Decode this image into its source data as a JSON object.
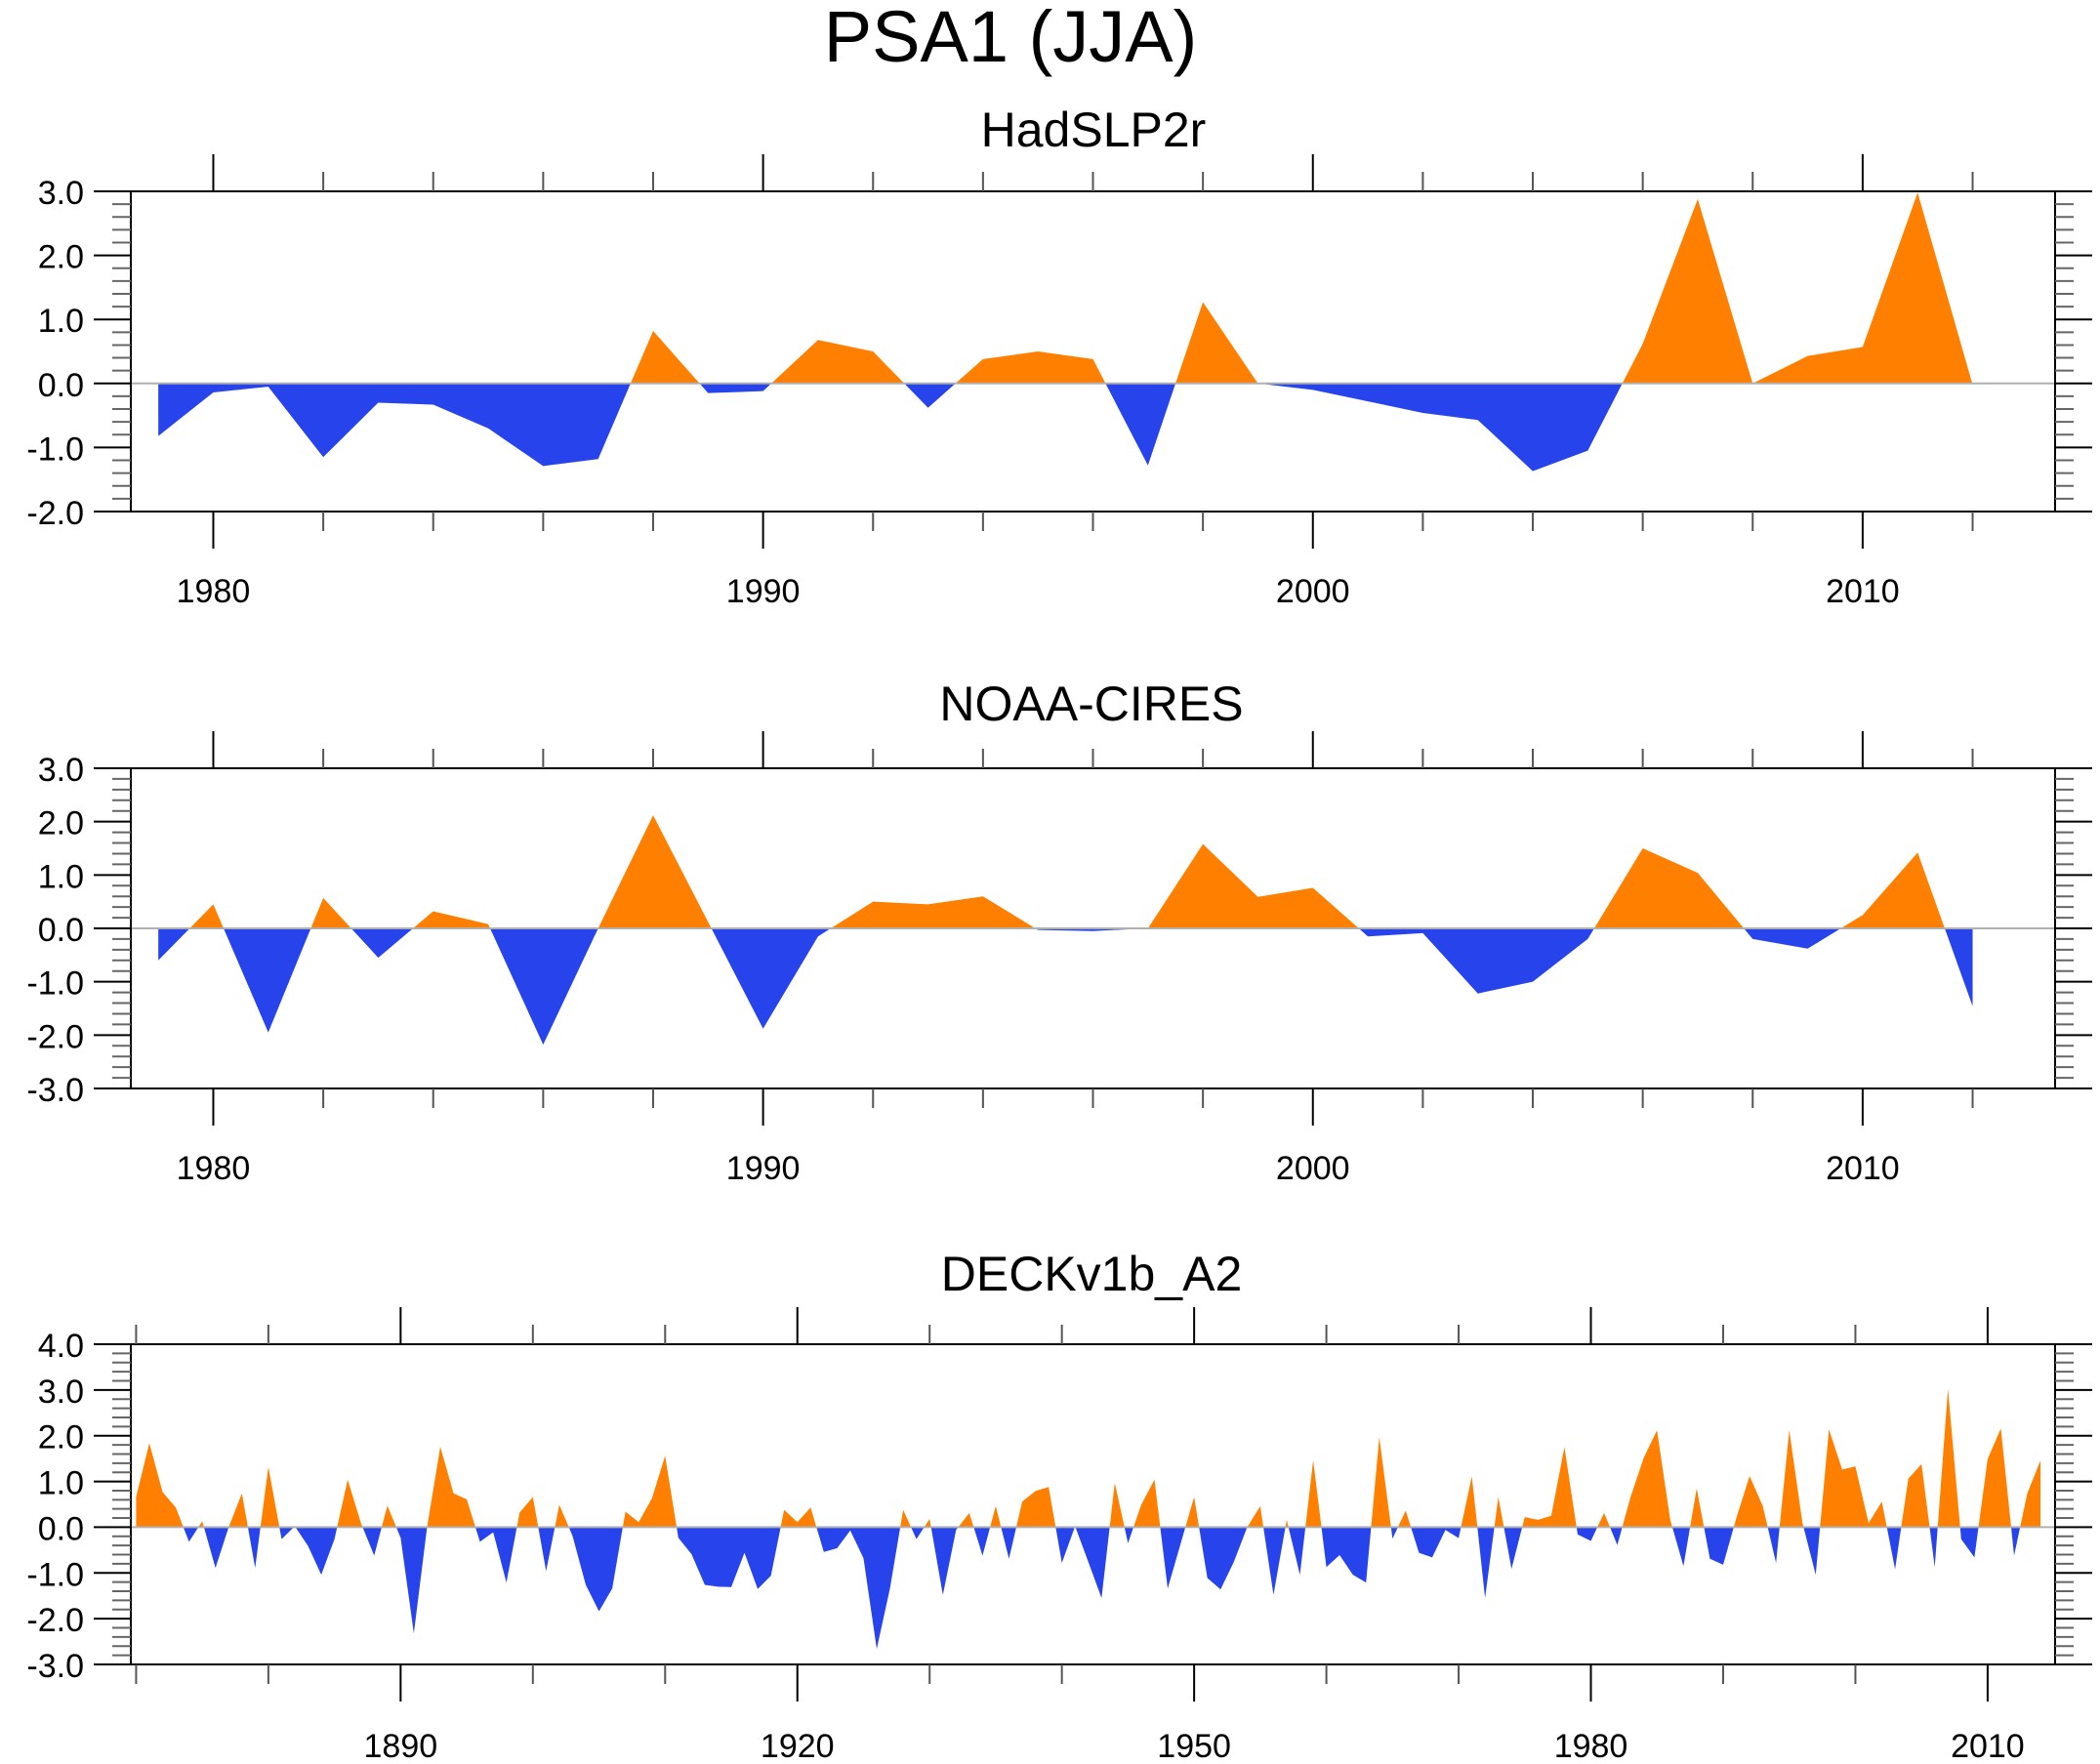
{
  "chart_data": {
    "type": "area",
    "title": "PSA1 (JJA)",
    "colors": {
      "positive": "#FF8000",
      "negative": "#2743EB",
      "zero_line": "#b0b0b0",
      "frame": "#000000"
    },
    "panels": [
      {
        "title": "HadSLP2r",
        "xlabel": "",
        "ylabel": "",
        "xlim": [
          1978.5,
          2013.5
        ],
        "ylim": [
          -2.0,
          3.0
        ],
        "x_major_ticks": [
          1980,
          1990,
          2000,
          2010
        ],
        "x_tick_labels": [
          "1980",
          "1990",
          "2000",
          "2010"
        ],
        "x_minor_step": 2,
        "y_ticks": [
          3.0,
          2.0,
          1.0,
          0.0,
          -1.0,
          -2.0
        ],
        "y_tick_labels": [
          "3.0",
          "2.0",
          "1.0",
          "0.0",
          "-1.0",
          "-2.0"
        ],
        "y_minor_step": 0.2,
        "grid": false,
        "x": [
          1979,
          1980,
          1981,
          1982,
          1983,
          1984,
          1985,
          1986,
          1987,
          1988,
          1989,
          1990,
          1991,
          1992,
          1993,
          1994,
          1995,
          1996,
          1997,
          1998,
          1999,
          2000,
          2001,
          2002,
          2003,
          2004,
          2005,
          2006,
          2007,
          2008,
          2009,
          2010,
          2011,
          2012
        ],
        "values": [
          -0.82,
          -0.14,
          -0.05,
          -1.15,
          -0.3,
          -0.33,
          -0.7,
          -1.29,
          -1.18,
          0.82,
          -0.15,
          -0.12,
          0.68,
          0.5,
          -0.38,
          0.38,
          0.5,
          0.38,
          -1.28,
          1.27,
          0.0,
          -0.1,
          -0.28,
          -0.46,
          -0.57,
          -1.37,
          -1.05,
          0.62,
          2.88,
          0.0,
          0.43,
          0.57,
          2.98,
          -0.02
        ]
      },
      {
        "title": "NOAA-CIRES",
        "xlabel": "",
        "ylabel": "",
        "xlim": [
          1978.5,
          2013.5
        ],
        "ylim": [
          -3.0,
          3.0
        ],
        "x_major_ticks": [
          1980,
          1990,
          2000,
          2010
        ],
        "x_tick_labels": [
          "1980",
          "1990",
          "2000",
          "2010"
        ],
        "x_minor_step": 2,
        "y_ticks": [
          3.0,
          2.0,
          1.0,
          0.0,
          -1.0,
          -2.0,
          -3.0
        ],
        "y_tick_labels": [
          "3.0",
          "2.0",
          "1.0",
          "0.0",
          "-1.0",
          "-2.0",
          "-3.0"
        ],
        "y_minor_step": 0.2,
        "grid": false,
        "x": [
          1979,
          1980,
          1981,
          1982,
          1983,
          1984,
          1985,
          1986,
          1987,
          1988,
          1989,
          1990,
          1991,
          1992,
          1993,
          1994,
          1995,
          1996,
          1997,
          1998,
          1999,
          2000,
          2001,
          2002,
          2003,
          2004,
          2005,
          2006,
          2007,
          2008,
          2009,
          2010,
          2011,
          2012
        ],
        "values": [
          -0.6,
          0.45,
          -1.95,
          0.57,
          -0.55,
          0.32,
          0.08,
          -2.18,
          0.0,
          2.12,
          0.12,
          -1.88,
          -0.15,
          0.5,
          0.45,
          0.6,
          -0.03,
          -0.05,
          0.0,
          1.58,
          0.59,
          0.76,
          -0.15,
          -0.09,
          -1.22,
          -1.0,
          -0.2,
          1.5,
          1.04,
          -0.2,
          -0.38,
          0.25,
          1.42,
          -1.46
        ]
      },
      {
        "title": "DECKv1b_A2",
        "xlabel": "",
        "ylabel": "",
        "xlim": [
          1869.6,
          2015.1
        ],
        "ylim": [
          -3.0,
          4.0
        ],
        "x_major_ticks": [
          1890,
          1920,
          1950,
          1980,
          2010
        ],
        "x_tick_labels": [
          "1890",
          "1920",
          "1950",
          "1980",
          "2010"
        ],
        "x_minor_step": 10,
        "y_ticks": [
          4.0,
          3.0,
          2.0,
          1.0,
          0.0,
          -1.0,
          -2.0,
          -3.0
        ],
        "y_tick_labels": [
          "4.0",
          "3.0",
          "2.0",
          "1.0",
          "0.0",
          "-1.0",
          "-2.0",
          "-3.0"
        ],
        "y_minor_step": 0.2,
        "grid": false,
        "x_start": 1870,
        "values": [
          0.66,
          1.84,
          0.77,
          0.43,
          -0.32,
          0.13,
          -0.89,
          0.0,
          0.74,
          -0.89,
          1.32,
          -0.26,
          0.02,
          -0.41,
          -1.04,
          -0.26,
          1.04,
          0.09,
          -0.62,
          0.47,
          -0.23,
          -2.32,
          0.0,
          1.76,
          0.74,
          0.61,
          -0.32,
          -0.11,
          -1.21,
          0.32,
          0.66,
          -0.96,
          0.49,
          -0.19,
          -1.26,
          -1.84,
          -1.34,
          0.34,
          0.11,
          0.63,
          1.56,
          -0.23,
          -0.59,
          -1.26,
          -1.3,
          -1.31,
          -0.56,
          -1.35,
          -1.06,
          0.38,
          0.11,
          0.43,
          -0.54,
          -0.46,
          -0.07,
          -0.68,
          -2.66,
          -1.34,
          0.38,
          -0.26,
          0.18,
          -1.48,
          -0.06,
          0.31,
          -0.62,
          0.46,
          -0.69,
          0.56,
          0.79,
          0.88,
          -0.78,
          0.02,
          -0.76,
          -1.55,
          0.97,
          -0.35,
          0.49,
          1.04,
          -1.34,
          -0.34,
          0.66,
          -1.11,
          -1.36,
          -0.76,
          -0.01,
          0.46,
          -1.48,
          0.16,
          -1.04,
          1.46,
          -0.87,
          -0.61,
          -1.04,
          -1.21,
          1.97,
          -0.25,
          0.36,
          -0.56,
          -0.66,
          -0.06,
          -0.24,
          1.11,
          -1.55,
          0.66,
          -0.91,
          0.22,
          0.16,
          0.25,
          1.75,
          -0.16,
          -0.3,
          0.31,
          -0.39,
          0.66,
          1.52,
          2.12,
          0.16,
          -0.85,
          0.85,
          -0.69,
          -0.82,
          0.2,
          1.12,
          0.46,
          -0.78,
          2.12,
          0.09,
          -1.04,
          2.14,
          1.26,
          1.33,
          0.09,
          0.56,
          -0.92,
          1.06,
          1.38,
          -0.87,
          3.02,
          -0.26,
          -0.66,
          1.49,
          2.16,
          -0.62,
          0.74,
          1.46
        ]
      }
    ]
  }
}
